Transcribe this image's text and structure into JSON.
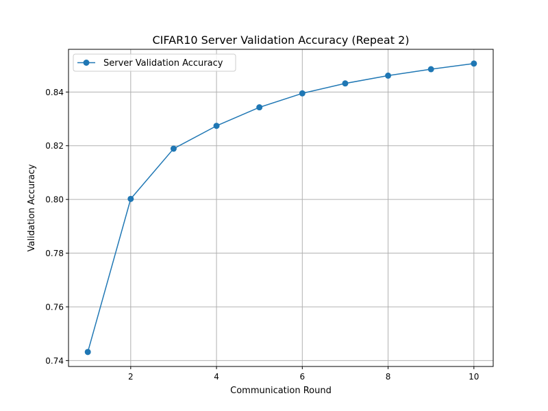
{
  "chart_data": {
    "type": "line",
    "title": "CIFAR10 Server Validation Accuracy (Repeat 2)",
    "xlabel": "Communication Round",
    "ylabel": "Validation Accuracy",
    "xlim": [
      0.55,
      10.45
    ],
    "ylim": [
      0.7378,
      0.8559
    ],
    "xticks": [
      2,
      4,
      6,
      8,
      10
    ],
    "xtick_labels": [
      "2",
      "4",
      "6",
      "8",
      "10"
    ],
    "yticks": [
      0.74,
      0.76,
      0.78,
      0.8,
      0.82,
      0.84
    ],
    "ytick_labels": [
      "0.74",
      "0.76",
      "0.78",
      "0.80",
      "0.82",
      "0.84"
    ],
    "grid": true,
    "legend_position": "upper-left",
    "series": [
      {
        "name": "Server Validation Accuracy",
        "color": "#1f77b4",
        "marker": "circle",
        "x": [
          1,
          2,
          3,
          4,
          5,
          6,
          7,
          8,
          9,
          10
        ],
        "y": [
          0.7432,
          0.8002,
          0.8189,
          0.8274,
          0.8343,
          0.8395,
          0.8432,
          0.8461,
          0.8485,
          0.8506
        ]
      }
    ]
  }
}
